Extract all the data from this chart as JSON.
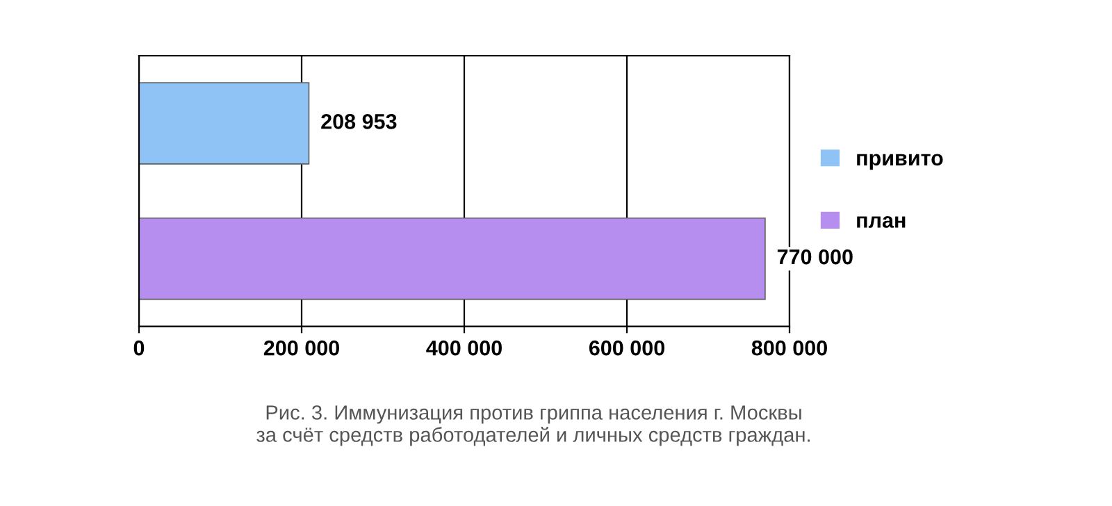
{
  "chart_data": {
    "type": "bar",
    "orientation": "horizontal",
    "categories": [
      null,
      null
    ],
    "series": [
      {
        "name": "привито",
        "color": "#8fc3f5",
        "values": [
          208953,
          null
        ],
        "value_labels": [
          "208 953",
          null
        ]
      },
      {
        "name": "план",
        "color": "#b58ef0",
        "values": [
          null,
          770000
        ],
        "value_labels": [
          null,
          "770 000"
        ]
      }
    ],
    "xlim": [
      0,
      800000
    ],
    "xticks": [
      0,
      {
        "value": 200000,
        "label": "200 000"
      },
      {
        "value": 400000,
        "label": "400 000"
      },
      {
        "value": 600000,
        "label": "600 000"
      },
      {
        "value": 800000,
        "label": "800 000"
      }
    ],
    "grid": "x",
    "legend": "right",
    "tick_labels": "x",
    "annotations": [
      "Рис. 3. Иммунизация против гриппа населения г. Москвы\nза счёт средств работодателей и личных средств граждан."
    ]
  }
}
